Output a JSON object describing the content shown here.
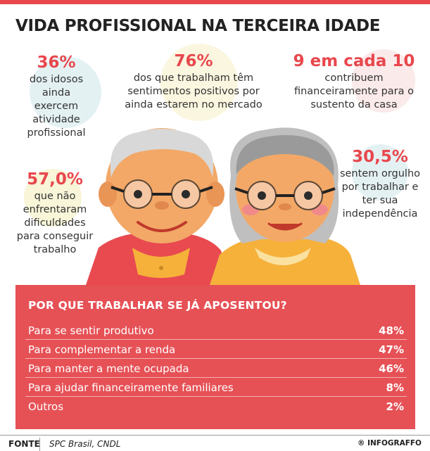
{
  "title": "VIDA PROFISSIONAL NA TERCEIRA IDADE",
  "stats": [
    {
      "value": "36%",
      "text": "dos idosos ainda exercem atividade profissional"
    },
    {
      "value": "76%",
      "text": "dos que trabalham têm sentimentos positivos por ainda estarem no mercado"
    },
    {
      "value": "9 em cada 10",
      "text": "contribuem financeiramente para o sustento da casa"
    },
    {
      "value": "57,0%",
      "text": "que não enfrentaram dificuldades para conseguir trabalho"
    },
    {
      "value": "30,5%",
      "text": "sentem orgulho por trabalhar e ter sua independência"
    }
  ],
  "reasons": {
    "title": "POR QUE TRABALHAR SE JÁ APOSENTOU?",
    "items": [
      {
        "label": "Para se sentir produtivo",
        "value": "48%"
      },
      {
        "label": "Para complementar a renda",
        "value": "47%"
      },
      {
        "label": "Para manter a mente ocupada",
        "value": "46%"
      },
      {
        "label": "Para ajudar financeiramente familiares",
        "value": "8%"
      },
      {
        "label": "Outros",
        "value": "2%"
      }
    ]
  },
  "footer": {
    "label": "FONTE",
    "source": "SPC Brasil, CNDL",
    "brand": "INFOGRAFFO"
  },
  "colors": {
    "accent": "#e8474d",
    "panel": "#e65156",
    "skin": "#f3a867",
    "shirt_man": "#e84a50",
    "shirt_woman": "#f6b13b",
    "hair": "#d8d8d8"
  }
}
